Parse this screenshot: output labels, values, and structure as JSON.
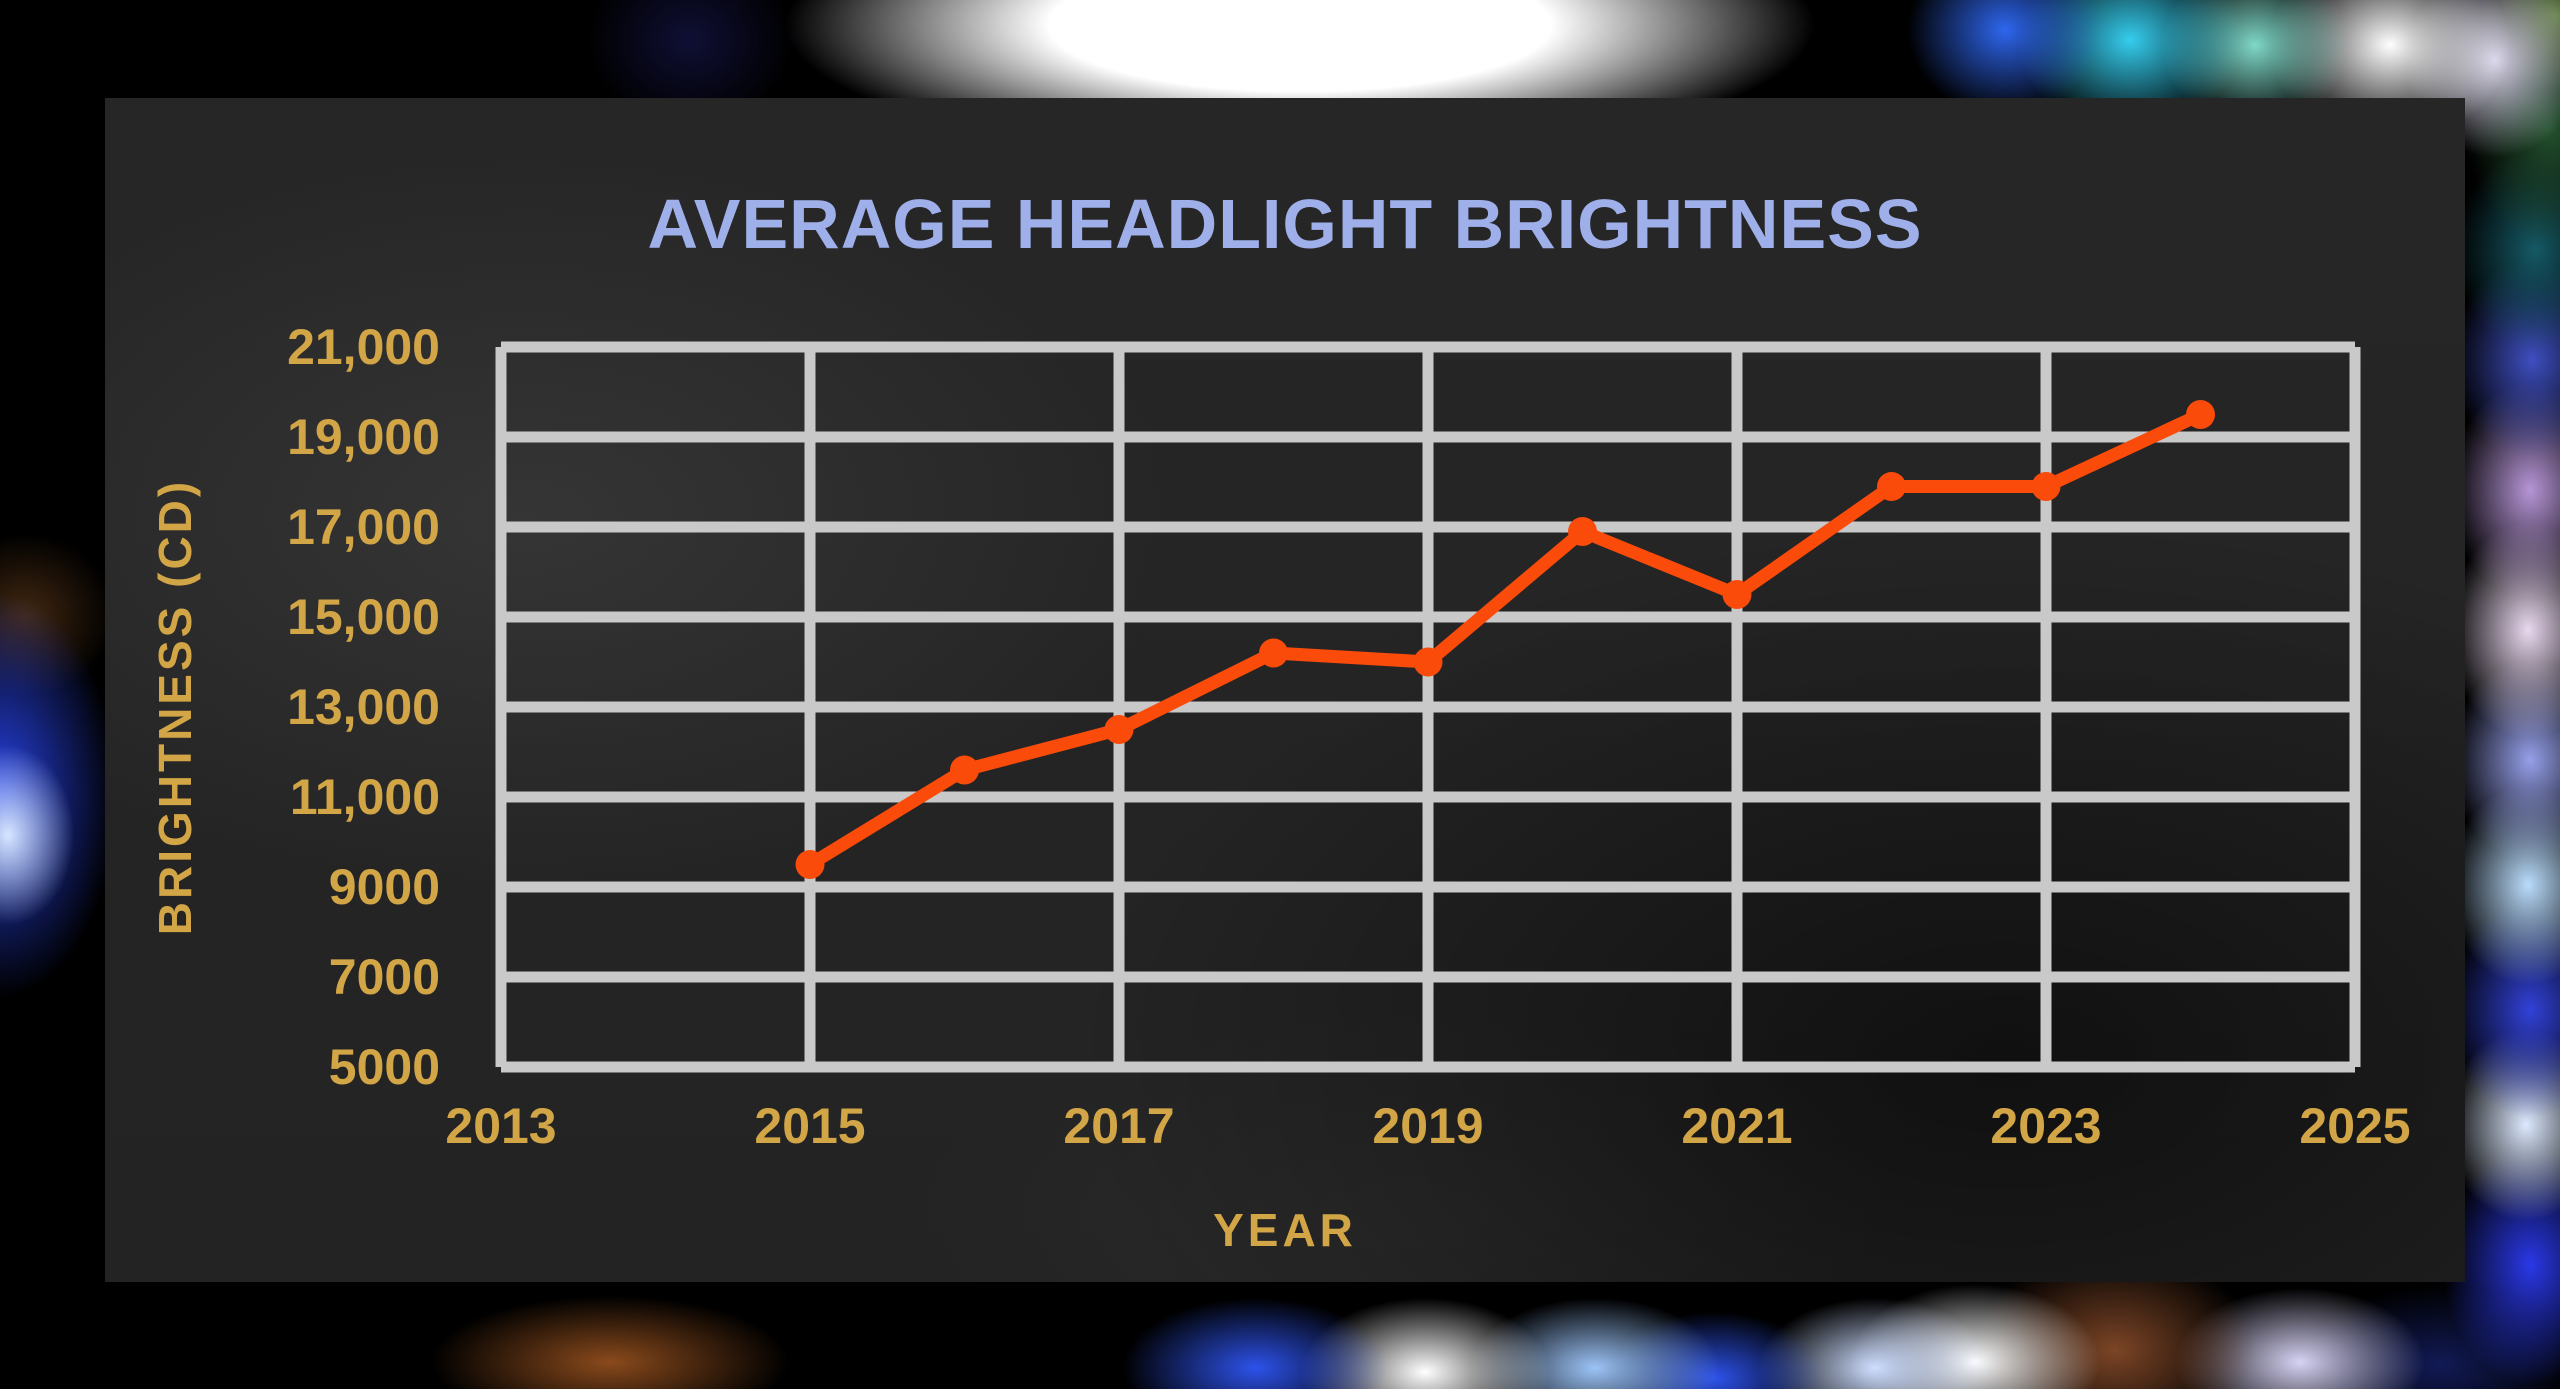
{
  "title": "AVERAGE HEADLIGHT BRIGHTNESS",
  "colors": {
    "title_text": "#9fafea",
    "axis_text": "#d2a546",
    "line": "#fa4b0a",
    "grid": "#c9c9c9",
    "panel_bg": "#232323",
    "outer_bg": "#000000"
  },
  "chart_data": {
    "type": "line",
    "title": "AVERAGE HEADLIGHT BRIGHTNESS",
    "xlabel": "YEAR",
    "ylabel": "BRIGHTNESS (CD)",
    "x_ticks": [
      "2013",
      "2015",
      "2017",
      "2019",
      "2021",
      "2023",
      "2025"
    ],
    "y_ticks": [
      "21,000",
      "19,000",
      "17,000",
      "15,000",
      "13,000",
      "11,000",
      "9000",
      "7000",
      "5000"
    ],
    "xlim": [
      2013,
      2025
    ],
    "ylim": [
      5000,
      21000
    ],
    "grid": true,
    "legend": false,
    "series": [
      {
        "name": "average-headlight-brightness-cd",
        "x": [
          2015,
          2016,
          2017,
          2018,
          2019,
          2020,
          2021,
          2022,
          2023,
          2024
        ],
        "values": [
          9500,
          11600,
          12500,
          14200,
          14000,
          16900,
          15500,
          17900,
          17900,
          19500
        ]
      }
    ]
  }
}
